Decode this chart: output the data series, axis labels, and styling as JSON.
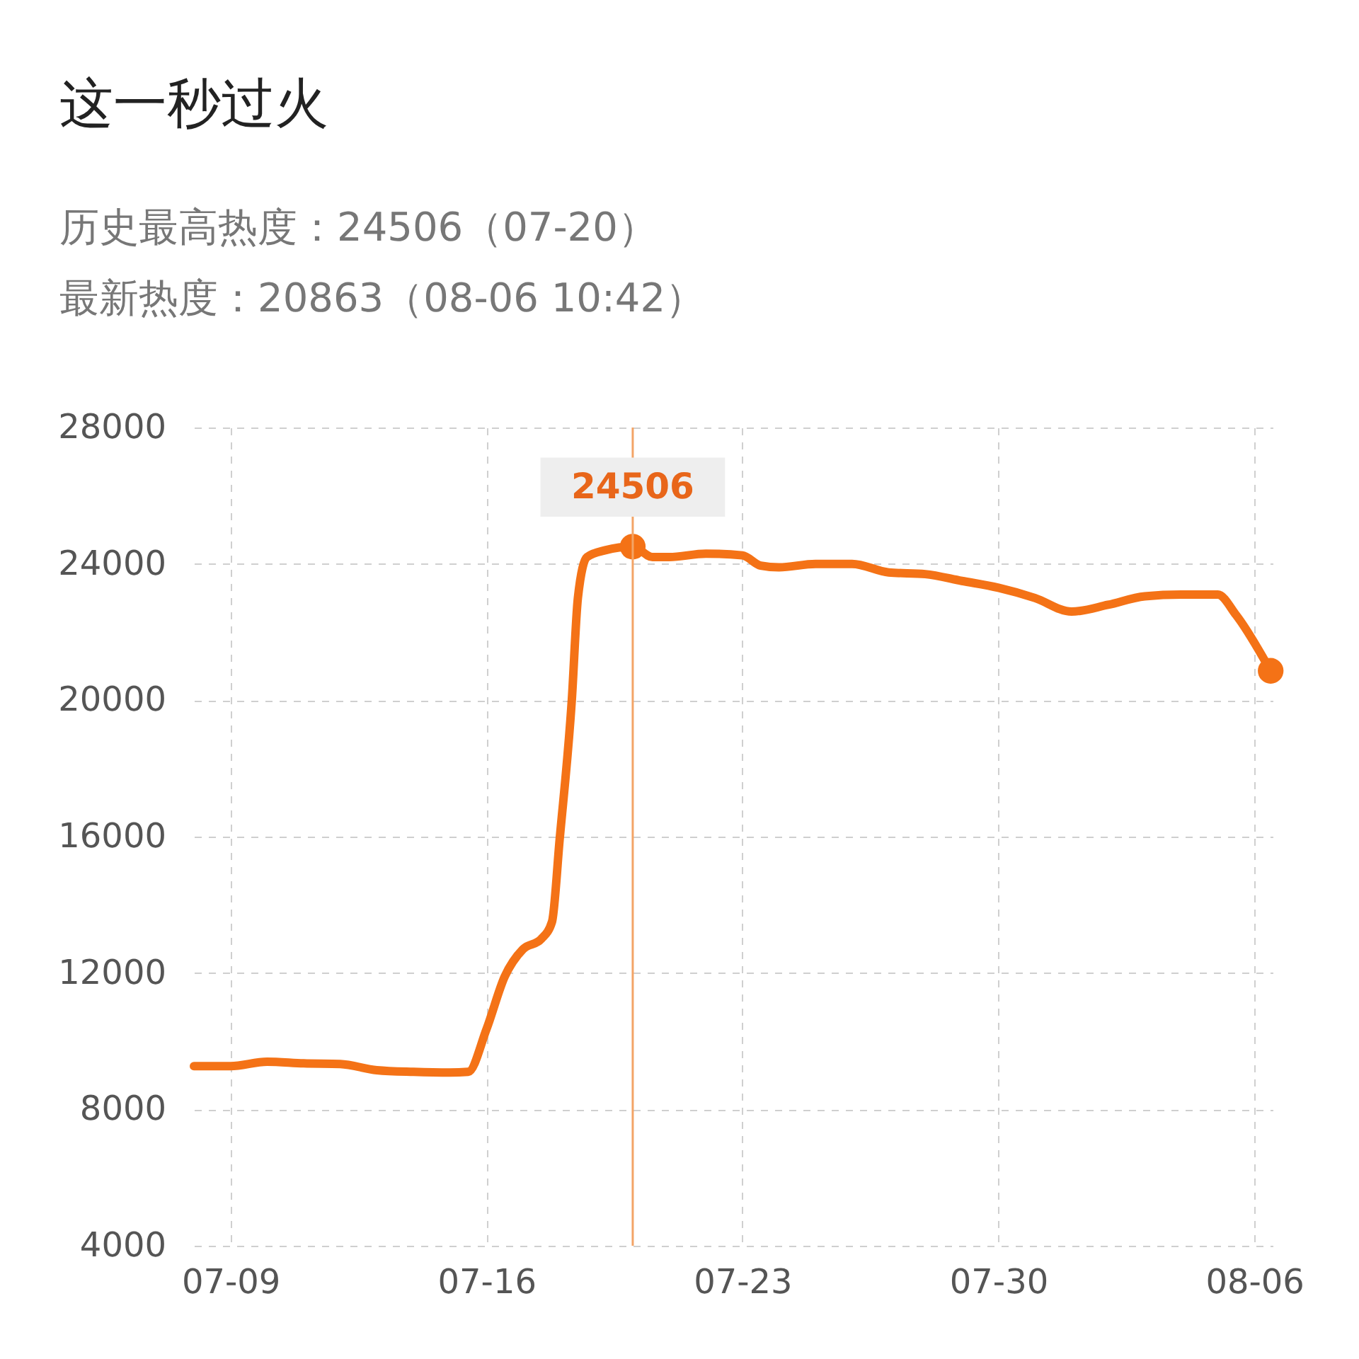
{
  "chart_data": {
    "type": "line",
    "title": "这一秒过火",
    "subtitle": "历史最高热度：24506（07-20）",
    "x": [
      "--07-08",
      "--07-09",
      "--07-10",
      "--07-11",
      "--07-12",
      "--07-13",
      "--07-14",
      "--07-15",
      "--07-15T12:00",
      "--07-16",
      "--07-16T12:00",
      "--07-17",
      "--07-17T12:00",
      "--07-17T19:00",
      "--07-18",
      "--07-18T08:00",
      "--07-18T12:00",
      "--07-18T18:00",
      "--07-19T06:00",
      "--07-20",
      "--07-20T13:00",
      "--07-21",
      "--07-22",
      "--07-23",
      "--07-23T12:00",
      "--07-24",
      "--07-25",
      "--07-26",
      "--07-27",
      "--07-28",
      "--07-29",
      "--07-30",
      "--07-31",
      "--08-01",
      "--08-02",
      "--08-03",
      "--08-04",
      "--08-05",
      "--08-05T12:00",
      "--08-06T10:42"
    ],
    "series": [
      {
        "color": "#f47216",
        "values": [
          9270,
          9270,
          9400,
          9350,
          9330,
          9150,
          9100,
          9080,
          9100,
          10350,
          11900,
          12700,
          13000,
          13500,
          15900,
          20000,
          23000,
          24200,
          24400,
          24506,
          24200,
          24200,
          24300,
          24250,
          23950,
          23900,
          24000,
          24000,
          23750,
          23700,
          23500,
          23300,
          23000,
          22600,
          22800,
          23050,
          23100,
          23100,
          22500,
          20863
        ]
      },
      {
        "type": "scatter",
        "color": "#f47216",
        "x": [
          "--07-20",
          "--08-06T10:42"
        ],
        "values": [
          24506,
          20863
        ]
      }
    ],
    "xlim": [
      "--07-08",
      "--08-06T12:00"
    ],
    "xticks": [
      {
        "value": "--07-09",
        "label": "07-09"
      },
      {
        "value": "--07-16",
        "label": "07-16"
      },
      {
        "value": "--07-23",
        "label": "07-23"
      },
      {
        "value": "--07-30",
        "label": "07-30"
      },
      {
        "value": "--08-06",
        "label": "08-06"
      }
    ],
    "ylim": [
      4000,
      28000
    ],
    "yticks": [
      4000,
      8000,
      12000,
      16000,
      20000,
      24000,
      28000
    ],
    "grid": true,
    "line_style": "solid",
    "ref_lines": [
      {
        "axis": "x",
        "value": "--07-20",
        "color": "#f3a466"
      }
    ],
    "annotations": [
      "最新热度：20863（08-06 10:42）",
      {
        "text": "24506",
        "x": "--07-20",
        "y": 24506
      }
    ]
  }
}
